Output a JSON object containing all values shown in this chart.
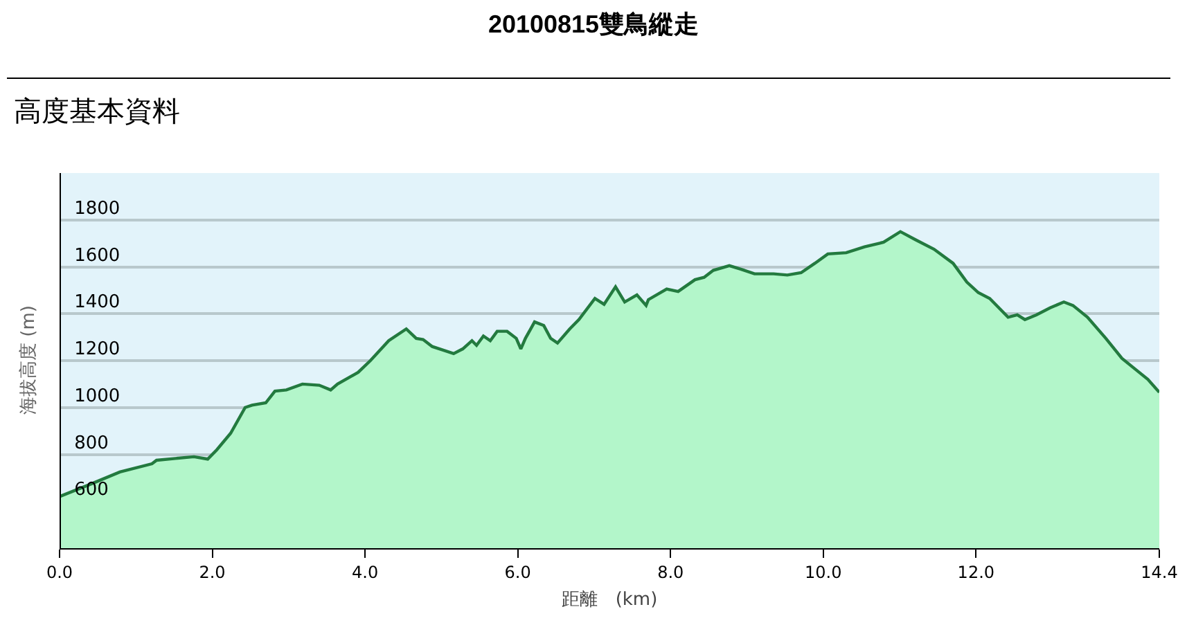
{
  "chart_data": {
    "type": "area",
    "title": "20100815雙鳥縱走",
    "subtitle": "高度基本資料",
    "xlabel": "距離　(km)",
    "ylabel": "海拔高度 (m)",
    "x": [
      0,
      0.42,
      0.79,
      1.21,
      1.27,
      1.76,
      1.94,
      2.06,
      2.24,
      2.43,
      2.52,
      2.7,
      2.82,
      2.97,
      3.18,
      3.4,
      3.55,
      3.64,
      3.91,
      4.07,
      4.31,
      4.54,
      4.67,
      4.76,
      4.88,
      5.16,
      5.28,
      5.4,
      5.46,
      5.55,
      5.64,
      5.73,
      5.86,
      5.98,
      6.04,
      6.1,
      6.22,
      6.34,
      6.43,
      6.52,
      6.68,
      6.8,
      7.01,
      7.13,
      7.28,
      7.4,
      7.56,
      7.68,
      7.71,
      7.95,
      8.1,
      8.32,
      8.44,
      8.56,
      8.77,
      8.92,
      9.1,
      9.35,
      9.53,
      9.71,
      9.89,
      10.06,
      10.3,
      10.54,
      10.79,
      11.01,
      11.21,
      11.45,
      11.7,
      11.88,
      12.03,
      12.18,
      12.42,
      12.54,
      12.64,
      12.79,
      12.97,
      13.15,
      13.27,
      13.46,
      13.7,
      13.91,
      14.06,
      14.25,
      14.4
    ],
    "series": [
      {
        "color": "#b3f6ca",
        "values": [
          620,
          675,
          725,
          760,
          775,
          790,
          780,
          820,
          890,
          1000,
          1010,
          1020,
          1070,
          1075,
          1100,
          1095,
          1075,
          1100,
          1150,
          1200,
          1285,
          1335,
          1295,
          1290,
          1260,
          1230,
          1250,
          1285,
          1265,
          1305,
          1285,
          1325,
          1325,
          1295,
          1250,
          1295,
          1365,
          1350,
          1295,
          1275,
          1335,
          1375,
          1465,
          1440,
          1515,
          1450,
          1480,
          1435,
          1460,
          1505,
          1495,
          1545,
          1555,
          1585,
          1605,
          1590,
          1570,
          1570,
          1565,
          1575,
          1615,
          1655,
          1660,
          1685,
          1705,
          1750,
          1715,
          1675,
          1615,
          1535,
          1490,
          1465,
          1385,
          1395,
          1375,
          1395,
          1425,
          1450,
          1435,
          1385,
          1295,
          1210,
          1170,
          1120,
          1065
        ]
      }
    ],
    "xlim": [
      0,
      14.4
    ],
    "ylim": [
      400,
      2000
    ],
    "xticks": [
      {
        "value": 0,
        "label": "0.0"
      },
      {
        "value": 2,
        "label": "2.0"
      },
      {
        "value": 4,
        "label": "4.0"
      },
      {
        "value": 6,
        "label": "6.0"
      },
      {
        "value": 8,
        "label": "8.0"
      },
      {
        "value": 10,
        "label": "10.0"
      },
      {
        "value": 12,
        "label": "12.0"
      },
      {
        "value": 14.4,
        "label": "14.4"
      }
    ],
    "yticks": [
      600,
      800,
      1000,
      1200,
      1400,
      1600,
      1800
    ],
    "grid": "y",
    "marker": "none",
    "line_style": "solid"
  }
}
